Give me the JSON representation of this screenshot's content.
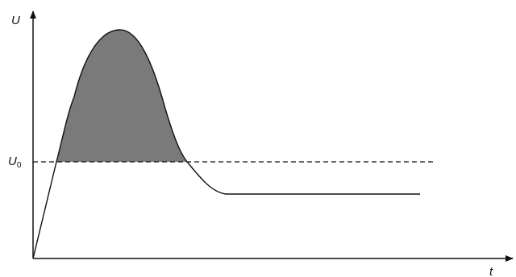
{
  "diagram": {
    "y_axis_label": "U",
    "x_axis_label": "t",
    "threshold_label": "U",
    "threshold_subscript": "0"
  },
  "colors": {
    "line": "#111111",
    "shaded_area": "#7a7a7a",
    "background": "#ffffff"
  }
}
